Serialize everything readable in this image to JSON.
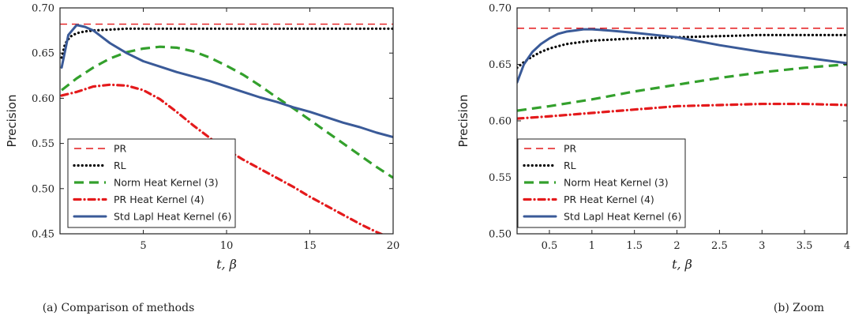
{
  "chart_data": [
    {
      "id": "a",
      "type": "line",
      "caption": "(a)  Comparison of methods",
      "xlabel": "t, β",
      "ylabel": "Precision",
      "xlim": [
        0,
        20
      ],
      "ylim": [
        0.45,
        0.7
      ],
      "xticks": [
        5,
        10,
        15,
        20
      ],
      "yticks": [
        0.45,
        0.5,
        0.55,
        0.6,
        0.65,
        0.7
      ],
      "yticklabels": [
        "0.45",
        "0.50",
        "0.55",
        "0.60",
        "0.65",
        "0.70"
      ],
      "grid": false,
      "legend_position": "lower-left",
      "series": [
        {
          "name": "PR",
          "style": "dashed-thin",
          "color": "#e41a1c",
          "x": [
            0,
            20
          ],
          "y": [
            0.682,
            0.682
          ]
        },
        {
          "name": "RL",
          "style": "dotted",
          "color": "#000000",
          "x": [
            0.1,
            0.3,
            0.6,
            1,
            1.5,
            2,
            3,
            4,
            5,
            7,
            10,
            15,
            20
          ],
          "y": [
            0.645,
            0.66,
            0.668,
            0.672,
            0.674,
            0.675,
            0.676,
            0.677,
            0.677,
            0.677,
            0.677,
            0.677,
            0.677
          ]
        },
        {
          "name": "Norm Heat Kernel (3)",
          "style": "dashed",
          "color": "#33a02c",
          "x": [
            0.1,
            1,
            2,
            3,
            4,
            5,
            6,
            7,
            8,
            9,
            10,
            11,
            12,
            13,
            14,
            15,
            16,
            17,
            18,
            19,
            20
          ],
          "y": [
            0.609,
            0.622,
            0.634,
            0.644,
            0.651,
            0.655,
            0.657,
            0.656,
            0.652,
            0.645,
            0.636,
            0.626,
            0.614,
            0.601,
            0.589,
            0.576,
            0.563,
            0.55,
            0.537,
            0.524,
            0.512
          ]
        },
        {
          "name": "PR Heat Kernel (4)",
          "style": "dashdot",
          "color": "#e41a1c",
          "x": [
            0.1,
            1,
            2,
            3,
            4,
            5,
            6,
            7,
            8,
            9,
            10,
            11,
            12,
            13,
            14,
            15,
            16,
            17,
            18,
            19,
            20
          ],
          "y": [
            0.603,
            0.607,
            0.613,
            0.615,
            0.614,
            0.609,
            0.599,
            0.585,
            0.57,
            0.556,
            0.543,
            0.532,
            0.522,
            0.512,
            0.502,
            0.491,
            0.481,
            0.471,
            0.461,
            0.452,
            0.444
          ]
        },
        {
          "name": "Std Lapl Heat Kernel (6)",
          "style": "solid",
          "color": "#3a5a98",
          "x": [
            0.1,
            0.5,
            1,
            1.5,
            2,
            3,
            4,
            5,
            6,
            7,
            8,
            9,
            10,
            11,
            12,
            13,
            14,
            15,
            16,
            17,
            18,
            19,
            20
          ],
          "y": [
            0.634,
            0.67,
            0.681,
            0.679,
            0.675,
            0.661,
            0.65,
            0.641,
            0.635,
            0.629,
            0.624,
            0.619,
            0.613,
            0.607,
            0.601,
            0.596,
            0.59,
            0.585,
            0.579,
            0.573,
            0.568,
            0.562,
            0.557
          ]
        }
      ]
    },
    {
      "id": "b",
      "type": "line",
      "caption": "(b)  Zoom",
      "xlabel": "t, β",
      "ylabel": "Precision",
      "xlim": [
        0.12,
        4.0
      ],
      "ylim": [
        0.5,
        0.7
      ],
      "xticks": [
        0.5,
        1.0,
        1.5,
        2.0,
        2.5,
        3.0,
        3.5,
        4.0
      ],
      "yticks": [
        0.5,
        0.55,
        0.6,
        0.65,
        0.7
      ],
      "yticklabels": [
        "0.50",
        "0.55",
        "0.60",
        "0.65",
        "0.70"
      ],
      "grid": false,
      "legend_position": "lower-left",
      "series": [
        {
          "name": "PR",
          "style": "dashed-thin",
          "color": "#e41a1c",
          "x": [
            0.12,
            4.0
          ],
          "y": [
            0.682,
            0.682
          ]
        },
        {
          "name": "RL",
          "style": "dotted",
          "color": "#000000",
          "x": [
            0.12,
            0.2,
            0.3,
            0.4,
            0.5,
            0.7,
            1.0,
            1.5,
            2.0,
            2.5,
            3.0,
            3.5,
            4.0
          ],
          "y": [
            0.647,
            0.652,
            0.657,
            0.661,
            0.664,
            0.668,
            0.671,
            0.673,
            0.674,
            0.675,
            0.676,
            0.676,
            0.676
          ]
        },
        {
          "name": "Norm Heat Kernel (3)",
          "style": "dashed",
          "color": "#33a02c",
          "x": [
            0.12,
            0.5,
            1.0,
            1.5,
            2.0,
            2.5,
            3.0,
            3.5,
            4.0
          ],
          "y": [
            0.609,
            0.613,
            0.619,
            0.626,
            0.632,
            0.638,
            0.643,
            0.647,
            0.65
          ]
        },
        {
          "name": "PR Heat Kernel (4)",
          "style": "dashdot",
          "color": "#e41a1c",
          "x": [
            0.12,
            0.5,
            1.0,
            1.5,
            2.0,
            2.5,
            3.0,
            3.5,
            4.0
          ],
          "y": [
            0.602,
            0.604,
            0.607,
            0.61,
            0.613,
            0.614,
            0.615,
            0.615,
            0.614
          ]
        },
        {
          "name": "Std Lapl Heat Kernel (6)",
          "style": "solid",
          "color": "#3a5a98",
          "x": [
            0.12,
            0.2,
            0.3,
            0.4,
            0.5,
            0.6,
            0.7,
            0.8,
            0.9,
            1.0,
            1.2,
            1.5,
            2.0,
            2.5,
            3.0,
            3.5,
            4.0
          ],
          "y": [
            0.634,
            0.65,
            0.661,
            0.668,
            0.673,
            0.677,
            0.679,
            0.68,
            0.681,
            0.681,
            0.68,
            0.678,
            0.674,
            0.667,
            0.661,
            0.656,
            0.651
          ]
        }
      ]
    }
  ]
}
